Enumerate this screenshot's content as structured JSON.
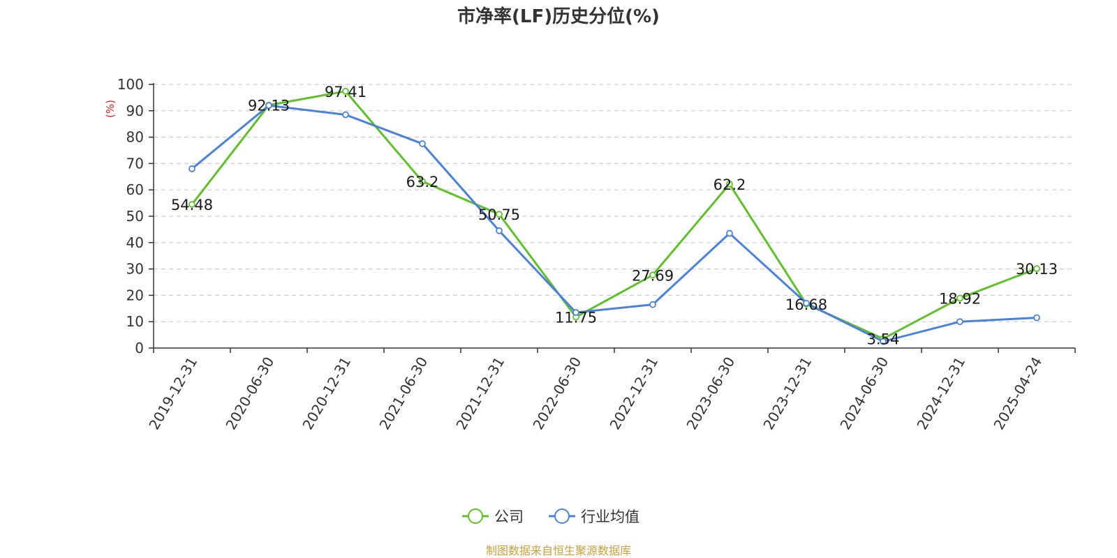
{
  "chart_data": {
    "type": "line",
    "title": "市净率(LF)历史分位(%)",
    "ylabel": "(%)",
    "ylim": [
      0,
      100
    ],
    "yticks": [
      0,
      10,
      20,
      30,
      40,
      50,
      60,
      70,
      80,
      90,
      100
    ],
    "grid": true,
    "legend_position": "bottom",
    "categories": [
      "2019-12-31",
      "2020-06-30",
      "2020-12-31",
      "2021-06-30",
      "2021-12-31",
      "2022-06-30",
      "2022-12-31",
      "2023-06-30",
      "2023-12-31",
      "2024-06-30",
      "2024-12-31",
      "2025-04-24"
    ],
    "series": [
      {
        "name": "公司",
        "color": "#5ec227",
        "values": [
          54.48,
          92.13,
          97.41,
          63.2,
          50.75,
          11.75,
          27.69,
          62.2,
          16.68,
          3.54,
          18.92,
          30.13
        ],
        "labels": [
          "54.48",
          "92.13",
          "97.41",
          "63.2",
          "50.75",
          "11.75",
          "27.69",
          "62.2",
          "16.68",
          "3.54",
          "18.92",
          "30.13"
        ]
      },
      {
        "name": "行业均值",
        "color": "#4a81dc",
        "values": [
          68,
          92,
          88.5,
          77.5,
          44.5,
          13.5,
          16.5,
          43.5,
          17,
          2.5,
          10,
          11.5
        ]
      }
    ]
  },
  "source_text": "制图数据来自恒生聚源数据库"
}
